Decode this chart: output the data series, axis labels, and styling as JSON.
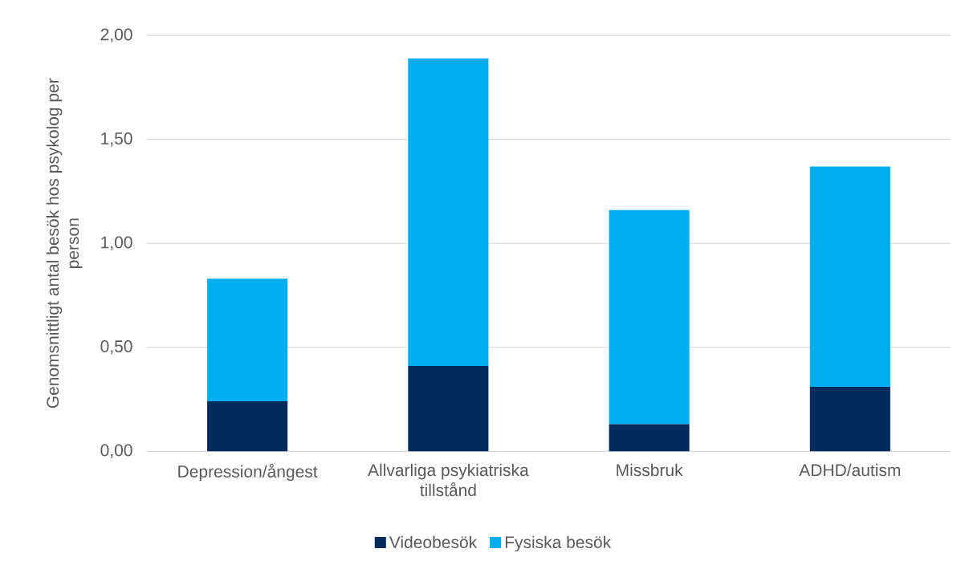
{
  "chart_data": {
    "type": "bar",
    "stacked": true,
    "ylabel": "Genomsnittligt antal besök hos psykolog per person",
    "categories": [
      "Depression/ångest",
      "Allvarliga psykiatriska tillstånd",
      "Missbruk",
      "ADHD/autism"
    ],
    "series": [
      {
        "name": "Videobesök",
        "color": "#002b5a",
        "values": [
          0.24,
          0.41,
          0.13,
          0.31
        ]
      },
      {
        "name": "Fysiska besök",
        "color": "#00aeef",
        "values": [
          0.59,
          1.48,
          1.03,
          1.06
        ]
      }
    ],
    "ylim": [
      0,
      2
    ],
    "yticks": [
      {
        "value": 0,
        "label": "0,00"
      },
      {
        "value": 0.5,
        "label": "0,50"
      },
      {
        "value": 1,
        "label": "1,00"
      },
      {
        "value": 1.5,
        "label": "1,50"
      },
      {
        "value": 2,
        "label": "2,00"
      }
    ],
    "grid": "y",
    "legend": "bottom"
  }
}
